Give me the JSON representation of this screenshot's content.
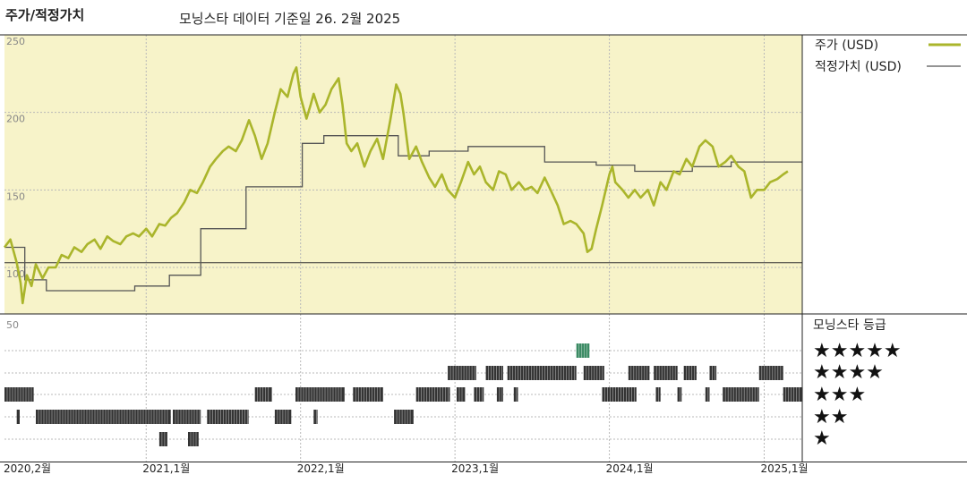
{
  "header": {
    "chart_title": "주가/적정가치",
    "subtitle": "모닝스타 데이터 기준일 26. 2월 2025"
  },
  "legend": {
    "price_label": "주가 (USD)",
    "fair_value_label": "적정가치 (USD)",
    "rating_title": "모닝스타 등급",
    "star_rows": [
      "★★★★★",
      "★★★★",
      "★★★",
      "★★",
      "★"
    ]
  },
  "colors": {
    "price_line": "#aab52b",
    "fair_value_line": "#555555",
    "upper_panel_bg": "#f7f3c9",
    "rating_bar": "#333333",
    "rating_five_star": "#3a8a63"
  },
  "chart_data": [
    {
      "type": "line",
      "ylim": [
        70,
        250
      ],
      "ytick_labels": [
        "250",
        "200",
        "150",
        "100"
      ],
      "yticks": [
        250,
        200,
        150,
        100
      ],
      "x_range": [
        "2020-02",
        "2025-04"
      ],
      "x_label_texts": [
        "2020,2월",
        "2021,1월",
        "2022,1월",
        "2023,1월",
        "2024,1월",
        "2025,1월"
      ],
      "x_label_dates": [
        "2020-02",
        "2021-01",
        "2022-01",
        "2023-01",
        "2024-01",
        "2025-01"
      ],
      "reference_line": 103,
      "series": [
        {
          "name": "주가 (USD)",
          "points": [
            [
              "2020-02-01",
              113
            ],
            [
              "2020-02-15",
              118
            ],
            [
              "2020-03-01",
              103
            ],
            [
              "2020-03-10",
              90
            ],
            [
              "2020-03-15",
              77
            ],
            [
              "2020-03-25",
              95
            ],
            [
              "2020-04-05",
              88
            ],
            [
              "2020-04-15",
              102
            ],
            [
              "2020-05-01",
              93
            ],
            [
              "2020-05-15",
              100
            ],
            [
              "2020-06-01",
              100
            ],
            [
              "2020-06-15",
              108
            ],
            [
              "2020-07-01",
              106
            ],
            [
              "2020-07-15",
              113
            ],
            [
              "2020-08-01",
              110
            ],
            [
              "2020-08-15",
              115
            ],
            [
              "2020-09-01",
              118
            ],
            [
              "2020-09-15",
              112
            ],
            [
              "2020-10-01",
              120
            ],
            [
              "2020-10-15",
              117
            ],
            [
              "2020-11-01",
              115
            ],
            [
              "2020-11-15",
              120
            ],
            [
              "2020-12-01",
              122
            ],
            [
              "2020-12-15",
              120
            ],
            [
              "2021-01-01",
              125
            ],
            [
              "2021-01-15",
              120
            ],
            [
              "2021-02-01",
              128
            ],
            [
              "2021-02-15",
              127
            ],
            [
              "2021-03-01",
              132
            ],
            [
              "2021-03-15",
              135
            ],
            [
              "2021-04-01",
              142
            ],
            [
              "2021-04-15",
              150
            ],
            [
              "2021-05-01",
              148
            ],
            [
              "2021-05-15",
              155
            ],
            [
              "2021-06-01",
              165
            ],
            [
              "2021-06-15",
              170
            ],
            [
              "2021-07-01",
              175
            ],
            [
              "2021-07-15",
              178
            ],
            [
              "2021-08-01",
              175
            ],
            [
              "2021-08-15",
              182
            ],
            [
              "2021-09-01",
              195
            ],
            [
              "2021-09-15",
              185
            ],
            [
              "2021-10-01",
              170
            ],
            [
              "2021-10-15",
              180
            ],
            [
              "2021-11-01",
              200
            ],
            [
              "2021-11-15",
              215
            ],
            [
              "2021-12-01",
              210
            ],
            [
              "2021-12-15",
              225
            ],
            [
              "2021-12-22",
              229
            ],
            [
              "2022-01-01",
              210
            ],
            [
              "2022-01-15",
              196
            ],
            [
              "2022-01-25",
              205
            ],
            [
              "2022-02-01",
              212
            ],
            [
              "2022-02-15",
              200
            ],
            [
              "2022-03-01",
              205
            ],
            [
              "2022-03-15",
              215
            ],
            [
              "2022-04-01",
              222
            ],
            [
              "2022-04-10",
              205
            ],
            [
              "2022-04-20",
              180
            ],
            [
              "2022-05-01",
              175
            ],
            [
              "2022-05-15",
              180
            ],
            [
              "2022-06-01",
              165
            ],
            [
              "2022-06-15",
              175
            ],
            [
              "2022-07-01",
              183
            ],
            [
              "2022-07-15",
              170
            ],
            [
              "2022-08-01",
              195
            ],
            [
              "2022-08-15",
              218
            ],
            [
              "2022-08-25",
              212
            ],
            [
              "2022-09-01",
              200
            ],
            [
              "2022-09-15",
              170
            ],
            [
              "2022-10-01",
              178
            ],
            [
              "2022-10-15",
              168
            ],
            [
              "2022-11-01",
              158
            ],
            [
              "2022-11-15",
              152
            ],
            [
              "2022-12-01",
              160
            ],
            [
              "2022-12-15",
              150
            ],
            [
              "2023-01-01",
              145
            ],
            [
              "2023-01-15",
              155
            ],
            [
              "2023-02-01",
              168
            ],
            [
              "2023-02-15",
              160
            ],
            [
              "2023-03-01",
              165
            ],
            [
              "2023-03-15",
              155
            ],
            [
              "2023-04-01",
              150
            ],
            [
              "2023-04-15",
              162
            ],
            [
              "2023-05-01",
              160
            ],
            [
              "2023-05-15",
              150
            ],
            [
              "2023-06-01",
              155
            ],
            [
              "2023-06-15",
              150
            ],
            [
              "2023-07-01",
              152
            ],
            [
              "2023-07-15",
              148
            ],
            [
              "2023-08-01",
              158
            ],
            [
              "2023-08-15",
              150
            ],
            [
              "2023-09-01",
              140
            ],
            [
              "2023-09-15",
              128
            ],
            [
              "2023-10-01",
              130
            ],
            [
              "2023-10-15",
              128
            ],
            [
              "2023-11-01",
              122
            ],
            [
              "2023-11-10",
              110
            ],
            [
              "2023-11-20",
              112
            ],
            [
              "2023-12-01",
              125
            ],
            [
              "2023-12-15",
              140
            ],
            [
              "2024-01-01",
              160
            ],
            [
              "2024-01-08",
              165
            ],
            [
              "2024-01-15",
              155
            ],
            [
              "2024-02-01",
              150
            ],
            [
              "2024-02-15",
              145
            ],
            [
              "2024-03-01",
              150
            ],
            [
              "2024-03-15",
              145
            ],
            [
              "2024-04-01",
              150
            ],
            [
              "2024-04-15",
              140
            ],
            [
              "2024-05-01",
              155
            ],
            [
              "2024-05-15",
              150
            ],
            [
              "2024-06-01",
              162
            ],
            [
              "2024-06-15",
              160
            ],
            [
              "2024-07-01",
              170
            ],
            [
              "2024-07-15",
              165
            ],
            [
              "2024-08-01",
              178
            ],
            [
              "2024-08-15",
              182
            ],
            [
              "2024-09-01",
              178
            ],
            [
              "2024-09-15",
              165
            ],
            [
              "2024-10-01",
              168
            ],
            [
              "2024-10-15",
              172
            ],
            [
              "2024-11-01",
              165
            ],
            [
              "2024-11-15",
              162
            ],
            [
              "2024-12-01",
              145
            ],
            [
              "2024-12-15",
              150
            ],
            [
              "2025-01-01",
              150
            ],
            [
              "2025-01-15",
              155
            ],
            [
              "2025-02-01",
              157
            ],
            [
              "2025-02-15",
              160
            ],
            [
              "2025-02-26",
              162
            ]
          ]
        },
        {
          "name": "적정가치 (USD)",
          "step_points": [
            [
              "2020-02-01",
              113
            ],
            [
              "2020-03-20",
              92
            ],
            [
              "2020-05-10",
              85
            ],
            [
              "2020-12-05",
              88
            ],
            [
              "2021-02-25",
              95
            ],
            [
              "2021-05-10",
              125
            ],
            [
              "2021-08-25",
              152
            ],
            [
              "2022-01-05",
              180
            ],
            [
              "2022-02-25",
              185
            ],
            [
              "2022-08-20",
              172
            ],
            [
              "2022-11-01",
              175
            ],
            [
              "2023-02-01",
              178
            ],
            [
              "2023-08-01",
              168
            ],
            [
              "2023-12-01",
              166
            ],
            [
              "2024-03-01",
              162
            ],
            [
              "2024-07-15",
              165
            ],
            [
              "2024-10-15",
              168
            ],
            [
              "2025-04-01",
              168
            ]
          ]
        }
      ]
    },
    {
      "type": "bar",
      "ylim_label": "50",
      "rating_rows": [
        5,
        4,
        3,
        2,
        1
      ],
      "segments": [
        {
          "stars": 3,
          "start": "2020-02-01",
          "end": "2020-04-10"
        },
        {
          "stars": 2,
          "start": "2020-03-01",
          "end": "2020-03-08"
        },
        {
          "stars": 2,
          "start": "2020-04-15",
          "end": "2021-02-28"
        },
        {
          "stars": 1,
          "start": "2021-02-01",
          "end": "2021-02-20"
        },
        {
          "stars": 2,
          "start": "2021-03-05",
          "end": "2021-05-10"
        },
        {
          "stars": 1,
          "start": "2021-04-10",
          "end": "2021-05-05"
        },
        {
          "stars": 2,
          "start": "2021-05-25",
          "end": "2021-08-31"
        },
        {
          "stars": 3,
          "start": "2021-09-15",
          "end": "2021-10-25"
        },
        {
          "stars": 2,
          "start": "2021-11-01",
          "end": "2021-12-10"
        },
        {
          "stars": 3,
          "start": "2021-12-20",
          "end": "2022-04-15"
        },
        {
          "stars": 2,
          "start": "2022-02-01",
          "end": "2022-02-10"
        },
        {
          "stars": 3,
          "start": "2022-05-05",
          "end": "2022-07-15"
        },
        {
          "stars": 2,
          "start": "2022-08-10",
          "end": "2022-09-25"
        },
        {
          "stars": 3,
          "start": "2022-10-01",
          "end": "2022-12-20"
        },
        {
          "stars": 4,
          "start": "2022-12-15",
          "end": "2023-02-20"
        },
        {
          "stars": 3,
          "start": "2023-01-05",
          "end": "2023-01-25"
        },
        {
          "stars": 3,
          "start": "2023-02-15",
          "end": "2023-03-10"
        },
        {
          "stars": 4,
          "start": "2023-03-15",
          "end": "2023-04-25"
        },
        {
          "stars": 3,
          "start": "2023-04-10",
          "end": "2023-04-25"
        },
        {
          "stars": 4,
          "start": "2023-05-05",
          "end": "2023-10-15"
        },
        {
          "stars": 3,
          "start": "2023-05-20",
          "end": "2023-05-30"
        },
        {
          "stars": 5,
          "start": "2023-10-15",
          "end": "2023-11-15"
        },
        {
          "stars": 4,
          "start": "2023-11-01",
          "end": "2023-12-20"
        },
        {
          "stars": 3,
          "start": "2023-12-15",
          "end": "2024-03-05"
        },
        {
          "stars": 4,
          "start": "2024-02-15",
          "end": "2024-04-05"
        },
        {
          "stars": 4,
          "start": "2024-04-15",
          "end": "2024-06-10"
        },
        {
          "stars": 3,
          "start": "2024-04-20",
          "end": "2024-05-01"
        },
        {
          "stars": 3,
          "start": "2024-06-10",
          "end": "2024-06-20"
        },
        {
          "stars": 4,
          "start": "2024-06-25",
          "end": "2024-07-25"
        },
        {
          "stars": 4,
          "start": "2024-08-25",
          "end": "2024-09-10"
        },
        {
          "stars": 3,
          "start": "2024-08-15",
          "end": "2024-08-25"
        },
        {
          "stars": 3,
          "start": "2024-09-25",
          "end": "2024-12-20"
        },
        {
          "stars": 4,
          "start": "2024-12-20",
          "end": "2025-02-15"
        },
        {
          "stars": 3,
          "start": "2025-02-15",
          "end": "2025-04-01"
        }
      ]
    }
  ]
}
